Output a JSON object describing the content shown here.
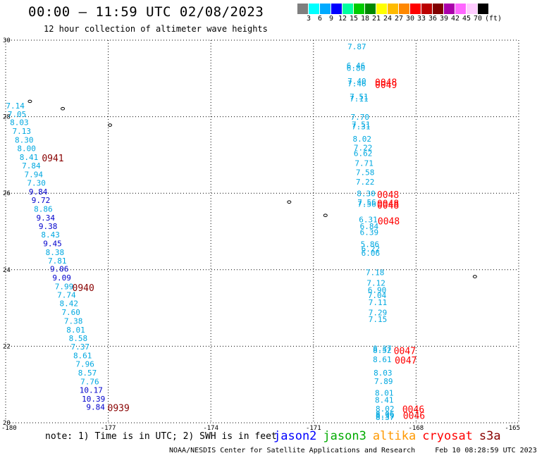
{
  "header": {
    "title": "00:00 – 11:59 UTC 02/08/2023",
    "subtitle": "12 hour collection of altimeter wave heights"
  },
  "legend": {
    "unit": "(ft)",
    "colors": [
      "#7f7f7f",
      "#00ffff",
      "#00aaff",
      "#0000ff",
      "#00ffa0",
      "#00cc00",
      "#008800",
      "#ffff00",
      "#ffbb00",
      "#ff8800",
      "#ff0000",
      "#bb0000",
      "#800000",
      "#aa00aa",
      "#ff66ff",
      "#ffccff",
      "#000000"
    ],
    "ticks": [
      "3",
      "6",
      "9",
      "12",
      "15",
      "18",
      "21",
      "24",
      "27",
      "30",
      "33",
      "36",
      "39",
      "42",
      "45",
      "70"
    ]
  },
  "map": {
    "lon_min": -180,
    "lon_max": -165,
    "lat_min": 20,
    "lat_max": 30,
    "x_ticks": [
      "-180",
      "-177",
      "-174",
      "-171",
      "-168",
      "-165"
    ],
    "y_ticks": [
      "30",
      "28",
      "26",
      "24",
      "22",
      "20"
    ],
    "swh_colors": {
      "light": "#00a8e0",
      "dark": "#0000cc"
    },
    "time_colors": {
      "cryosat": "#ff0000",
      "s3a": "#880000"
    },
    "swh_labels": [
      {
        "t": "7.14",
        "lon": -179.72,
        "lat": 28.29,
        "c": "light"
      },
      {
        "t": "7.05",
        "lon": -179.67,
        "lat": 28.07,
        "c": "light"
      },
      {
        "t": "8.03",
        "lon": -179.6,
        "lat": 27.85,
        "c": "light"
      },
      {
        "t": "7.13",
        "lon": -179.53,
        "lat": 27.62,
        "c": "light"
      },
      {
        "t": "8.30",
        "lon": -179.46,
        "lat": 27.39,
        "c": "light"
      },
      {
        "t": "8.00",
        "lon": -179.39,
        "lat": 27.17,
        "c": "light"
      },
      {
        "t": "8.41",
        "lon": -179.32,
        "lat": 26.94,
        "c": "light"
      },
      {
        "t": "7.84",
        "lon": -179.25,
        "lat": 26.72,
        "c": "light"
      },
      {
        "t": "7.94",
        "lon": -179.18,
        "lat": 26.49,
        "c": "light"
      },
      {
        "t": "7.30",
        "lon": -179.1,
        "lat": 26.27,
        "c": "light"
      },
      {
        "t": "9.84",
        "lon": -179.05,
        "lat": 26.04,
        "c": "dark"
      },
      {
        "t": "9.72",
        "lon": -178.97,
        "lat": 25.82,
        "c": "dark"
      },
      {
        "t": "8.86",
        "lon": -178.9,
        "lat": 25.59,
        "c": "light"
      },
      {
        "t": "9.34",
        "lon": -178.83,
        "lat": 25.36,
        "c": "dark"
      },
      {
        "t": "9.38",
        "lon": -178.76,
        "lat": 25.14,
        "c": "dark"
      },
      {
        "t": "8.43",
        "lon": -178.69,
        "lat": 24.92,
        "c": "light"
      },
      {
        "t": "9.45",
        "lon": -178.63,
        "lat": 24.69,
        "c": "dark"
      },
      {
        "t": "8.38",
        "lon": -178.56,
        "lat": 24.46,
        "c": "light"
      },
      {
        "t": "7.81",
        "lon": -178.49,
        "lat": 24.24,
        "c": "light"
      },
      {
        "t": "9.06",
        "lon": -178.43,
        "lat": 24.02,
        "c": "dark"
      },
      {
        "t": "9.09",
        "lon": -178.36,
        "lat": 23.79,
        "c": "dark"
      },
      {
        "t": "7.99",
        "lon": -178.29,
        "lat": 23.56,
        "c": "light"
      },
      {
        "t": "7.74",
        "lon": -178.22,
        "lat": 23.34,
        "c": "light"
      },
      {
        "t": "8.42",
        "lon": -178.15,
        "lat": 23.12,
        "c": "light"
      },
      {
        "t": "7.60",
        "lon": -178.09,
        "lat": 22.89,
        "c": "light"
      },
      {
        "t": "7.38",
        "lon": -178.02,
        "lat": 22.66,
        "c": "light"
      },
      {
        "t": "8.01",
        "lon": -177.95,
        "lat": 22.43,
        "c": "light"
      },
      {
        "t": "8.58",
        "lon": -177.88,
        "lat": 22.21,
        "c": "light"
      },
      {
        "t": "7.37",
        "lon": -177.82,
        "lat": 21.99,
        "c": "light"
      },
      {
        "t": "8.61",
        "lon": -177.75,
        "lat": 21.76,
        "c": "light"
      },
      {
        "t": "7.96",
        "lon": -177.68,
        "lat": 21.54,
        "c": "light"
      },
      {
        "t": "8.57",
        "lon": -177.61,
        "lat": 21.31,
        "c": "light"
      },
      {
        "t": "7.76",
        "lon": -177.54,
        "lat": 21.08,
        "c": "light"
      },
      {
        "t": "10.17",
        "lon": -177.5,
        "lat": 20.86,
        "c": "dark"
      },
      {
        "t": "10.39",
        "lon": -177.43,
        "lat": 20.63,
        "c": "dark"
      },
      {
        "t": "9.84",
        "lon": -177.37,
        "lat": 20.41,
        "c": "dark"
      },
      {
        "t": "7.87",
        "lon": -169.73,
        "lat": 29.83,
        "c": "light"
      },
      {
        "t": "6.46",
        "lon": -169.76,
        "lat": 29.34,
        "c": "light"
      },
      {
        "t": "6.80",
        "lon": -169.76,
        "lat": 29.27,
        "c": "light"
      },
      {
        "t": "7.40",
        "lon": -169.73,
        "lat": 28.93,
        "c": "light"
      },
      {
        "t": "7.46",
        "lon": -169.73,
        "lat": 28.87,
        "c": "light"
      },
      {
        "t": "7.51",
        "lon": -169.67,
        "lat": 28.53,
        "c": "light"
      },
      {
        "t": "7.11",
        "lon": -169.67,
        "lat": 28.47,
        "c": "light"
      },
      {
        "t": "7.70",
        "lon": -169.64,
        "lat": 27.99,
        "c": "light"
      },
      {
        "t": "7.51",
        "lon": -169.61,
        "lat": 27.8,
        "c": "light"
      },
      {
        "t": "7.31",
        "lon": -169.61,
        "lat": 27.74,
        "c": "light"
      },
      {
        "t": "8.02",
        "lon": -169.58,
        "lat": 27.42,
        "c": "light"
      },
      {
        "t": "7.22",
        "lon": -169.55,
        "lat": 27.19,
        "c": "light"
      },
      {
        "t": "6.62",
        "lon": -169.55,
        "lat": 27.04,
        "c": "light"
      },
      {
        "t": "7.71",
        "lon": -169.52,
        "lat": 26.79,
        "c": "light"
      },
      {
        "t": "7.58",
        "lon": -169.49,
        "lat": 26.55,
        "c": "light"
      },
      {
        "t": "7.22",
        "lon": -169.49,
        "lat": 26.3,
        "c": "light"
      },
      {
        "t": "8.30",
        "lon": -169.46,
        "lat": 25.99,
        "c": "light"
      },
      {
        "t": "7.56",
        "lon": -169.44,
        "lat": 25.76,
        "c": "light"
      },
      {
        "t": "7.56",
        "lon": -169.44,
        "lat": 25.72,
        "c": "light"
      },
      {
        "t": "6.31",
        "lon": -169.4,
        "lat": 25.31,
        "c": "light"
      },
      {
        "t": "6.84",
        "lon": -169.37,
        "lat": 25.14,
        "c": "light"
      },
      {
        "t": "6.39",
        "lon": -169.37,
        "lat": 24.98,
        "c": "light"
      },
      {
        "t": "5.86",
        "lon": -169.35,
        "lat": 24.67,
        "c": "light"
      },
      {
        "t": "6.22",
        "lon": -169.33,
        "lat": 24.55,
        "c": "light"
      },
      {
        "t": "6.06",
        "lon": -169.33,
        "lat": 24.44,
        "c": "light"
      },
      {
        "t": "7.18",
        "lon": -169.2,
        "lat": 23.93,
        "c": "light"
      },
      {
        "t": "7.12",
        "lon": -169.17,
        "lat": 23.66,
        "c": "light"
      },
      {
        "t": "6.90",
        "lon": -169.14,
        "lat": 23.47,
        "c": "light"
      },
      {
        "t": "7.04",
        "lon": -169.14,
        "lat": 23.33,
        "c": "light"
      },
      {
        "t": "7.11",
        "lon": -169.12,
        "lat": 23.15,
        "c": "light"
      },
      {
        "t": "7.29",
        "lon": -169.12,
        "lat": 22.88,
        "c": "light"
      },
      {
        "t": "7.15",
        "lon": -169.12,
        "lat": 22.71,
        "c": "light"
      },
      {
        "t": "8.37",
        "lon": -168.99,
        "lat": 21.94,
        "c": "light"
      },
      {
        "t": "8.52",
        "lon": -168.99,
        "lat": 21.9,
        "c": "light"
      },
      {
        "t": "8.61",
        "lon": -168.99,
        "lat": 21.66,
        "c": "light"
      },
      {
        "t": "8.03",
        "lon": -168.97,
        "lat": 21.31,
        "c": "light"
      },
      {
        "t": "7.89",
        "lon": -168.95,
        "lat": 21.09,
        "c": "light"
      },
      {
        "t": "8.01",
        "lon": -168.93,
        "lat": 20.78,
        "c": "light"
      },
      {
        "t": "8.41",
        "lon": -168.93,
        "lat": 20.6,
        "c": "light"
      },
      {
        "t": "8.02",
        "lon": -168.91,
        "lat": 20.37,
        "c": "light"
      },
      {
        "t": "8.06",
        "lon": -168.91,
        "lat": 20.23,
        "c": "light"
      },
      {
        "t": "8.39",
        "lon": -168.91,
        "lat": 20.19,
        "c": "light"
      },
      {
        "t": "8.37",
        "lon": -168.91,
        "lat": 20.15,
        "c": "light"
      }
    ],
    "time_labels": [
      {
        "t": "0941",
        "lon": -178.62,
        "lat": 26.92,
        "c": "s3a"
      },
      {
        "t": "0940",
        "lon": -177.73,
        "lat": 23.54,
        "c": "s3a"
      },
      {
        "t": "0939",
        "lon": -176.7,
        "lat": 20.4,
        "c": "s3a"
      },
      {
        "t": "0048",
        "lon": -168.88,
        "lat": 28.9,
        "c": "cryosat"
      },
      {
        "t": "0049",
        "lon": -168.88,
        "lat": 28.84,
        "c": "cryosat"
      },
      {
        "t": "0048",
        "lon": -168.82,
        "lat": 25.97,
        "c": "cryosat"
      },
      {
        "t": "0048",
        "lon": -168.82,
        "lat": 25.74,
        "c": "cryosat"
      },
      {
        "t": "0048",
        "lon": -168.82,
        "lat": 25.69,
        "c": "cryosat"
      },
      {
        "t": "0048",
        "lon": -168.8,
        "lat": 25.28,
        "c": "cryosat"
      },
      {
        "t": "0047",
        "lon": -168.33,
        "lat": 21.89,
        "c": "cryosat"
      },
      {
        "t": "0047",
        "lon": -168.3,
        "lat": 21.64,
        "c": "cryosat"
      },
      {
        "t": "0046",
        "lon": -168.08,
        "lat": 20.36,
        "c": "cryosat"
      },
      {
        "t": "0046",
        "lon": -168.06,
        "lat": 20.19,
        "c": "cryosat"
      }
    ],
    "islands": [
      {
        "lon": -179.29,
        "lat": 28.4
      },
      {
        "lon": -178.33,
        "lat": 28.21
      },
      {
        "lon": -176.95,
        "lat": 27.78
      },
      {
        "lon": -171.71,
        "lat": 25.77
      },
      {
        "lon": -170.65,
        "lat": 25.42
      },
      {
        "lon": -166.28,
        "lat": 23.82
      }
    ]
  },
  "footer": {
    "note": "note: 1) Time is in UTC; 2) SWH is in feet",
    "satellites": [
      {
        "name": "jason2",
        "color": "#0000ff"
      },
      {
        "name": "jason3",
        "color": "#00aa00"
      },
      {
        "name": "altika",
        "color": "#ff9900"
      },
      {
        "name": "cryosat",
        "color": "#ff0000"
      },
      {
        "name": "s3a",
        "color": "#880000"
      }
    ],
    "credit": "NOAA/NESDIS Center for Satellite Applications and Research",
    "timestamp": "Feb 10 08:28:59 UTC 2023"
  }
}
